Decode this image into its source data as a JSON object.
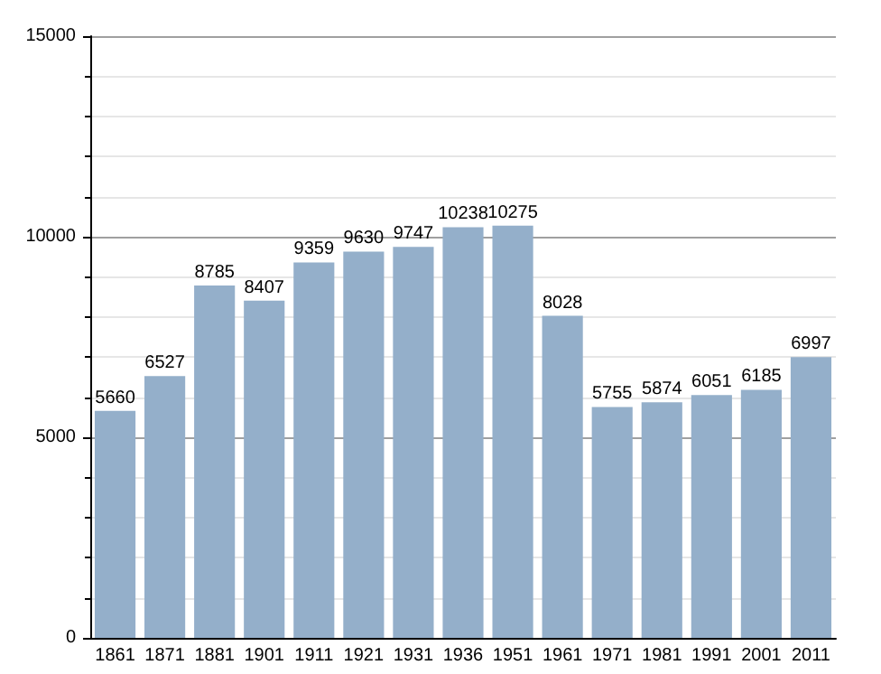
{
  "chart_data": {
    "type": "bar",
    "categories": [
      "1861",
      "1871",
      "1881",
      "1901",
      "1911",
      "1921",
      "1931",
      "1936",
      "1951",
      "1961",
      "1971",
      "1981",
      "1991",
      "2001",
      "2011"
    ],
    "values": [
      5660,
      6527,
      8785,
      8407,
      9359,
      9630,
      9747,
      10238,
      10275,
      8028,
      5755,
      5874,
      6051,
      6185,
      6997
    ],
    "color": "#94afca",
    "ylim": [
      0,
      15000
    ],
    "yticks": [
      0,
      5000,
      10000,
      15000
    ],
    "grid": "y",
    "data_labels": true
  }
}
